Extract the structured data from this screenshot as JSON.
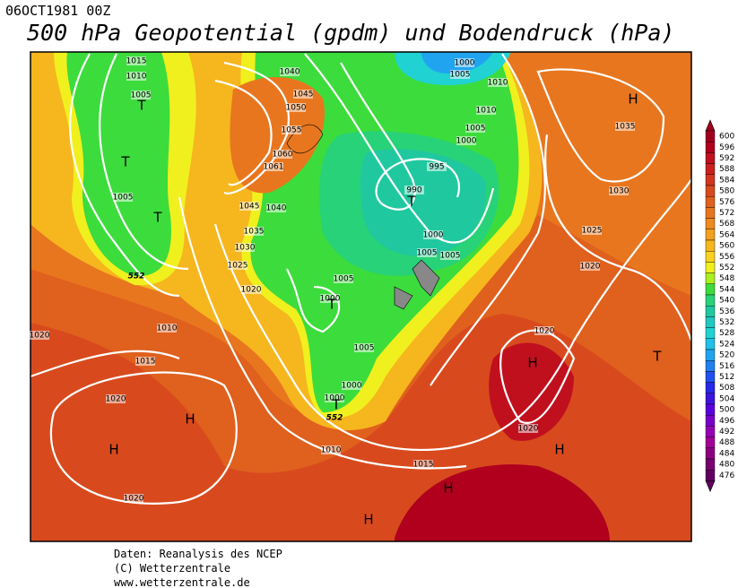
{
  "header": {
    "date": "06OCT1981 00Z",
    "title": "500 hPa Geopotential (gpdm) und Bodendruck (hPa)"
  },
  "legend": {
    "labels": [
      600,
      596,
      592,
      588,
      584,
      580,
      576,
      572,
      568,
      564,
      560,
      556,
      552,
      548,
      544,
      540,
      536,
      532,
      528,
      524,
      520,
      516,
      512,
      508,
      504,
      500,
      496,
      492,
      488,
      484,
      480,
      476
    ],
    "colors": [
      "#a0001e",
      "#b0001e",
      "#c0101e",
      "#c8201e",
      "#d0361e",
      "#d84a1e",
      "#e0601e",
      "#e8761e",
      "#ee8a1e",
      "#f2a01e",
      "#f6b61e",
      "#f8d21e",
      "#f0f01e",
      "#a8f01e",
      "#3cdc3c",
      "#28d278",
      "#20c8a0",
      "#20c8c0",
      "#20d2d2",
      "#20c0e8",
      "#20a4f0",
      "#2080f0",
      "#2050f0",
      "#2828e8",
      "#3c14dc",
      "#5a00dc",
      "#7800c8",
      "#9600b4",
      "#a00096",
      "#8c0080",
      "#78006e",
      "#600060"
    ]
  },
  "map": {
    "isobar_labels": [
      1015,
      1010,
      1005,
      1040,
      1045,
      1050,
      1055,
      1060,
      1061,
      1045,
      1040,
      1035,
      1030,
      1025,
      1020,
      1005,
      1000,
      1005,
      1010,
      1010,
      1005,
      1000,
      995,
      990,
      1000,
      1005,
      1005,
      1005,
      1000,
      1005,
      1000,
      1000,
      1010,
      1015,
      1020,
      1020,
      1020,
      1010,
      1015,
      1020,
      1025,
      1030,
      1035,
      1020,
      1020
    ],
    "pressure_centers": [
      "H",
      "T",
      "T",
      "T",
      "T",
      "T",
      "T",
      "H",
      "H",
      "H",
      "H",
      "H",
      "H",
      "T"
    ],
    "height_labels": [
      552,
      552
    ]
  },
  "credits": [
    "Daten: Reanalysis des NCEP",
    "(C) Wetterzentrale",
    "www.wetterzentrale.de"
  ]
}
